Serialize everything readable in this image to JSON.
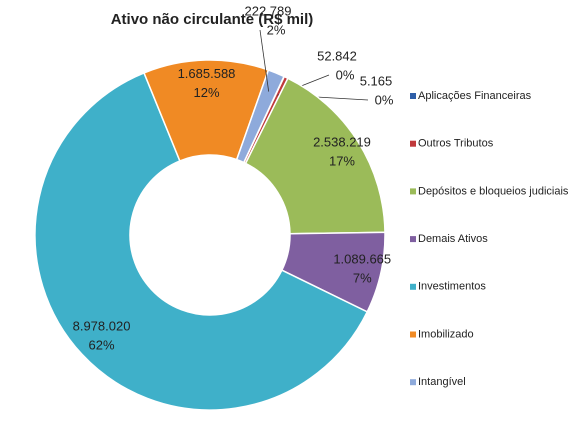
{
  "chart_data": {
    "type": "donut",
    "title": "Ativo não circulante (R$ mil)",
    "categories": [
      "Aplicações Financeiras",
      "Outros Tributos",
      "Depósitos e bloqueios judiciais",
      "Demais Ativos",
      "Investimentos",
      "Imobilizado",
      "Intangível"
    ],
    "values": [
      5165,
      52842,
      2538219,
      1089665,
      8978020,
      1685588,
      222789
    ],
    "value_labels": [
      "5.165",
      "52.842",
      "2.538.219",
      "1.089.665",
      "8.978.020",
      "1.685.588",
      "222.789"
    ],
    "percent_labels": [
      "0%",
      "0%",
      "17%",
      "7%",
      "62%",
      "12%",
      "2%"
    ],
    "colors": [
      "#2e5ea8",
      "#c0393b",
      "#9bbb59",
      "#7f5fa0",
      "#3fb0c9",
      "#f08a24",
      "#8eaadb"
    ],
    "legend": "right"
  }
}
